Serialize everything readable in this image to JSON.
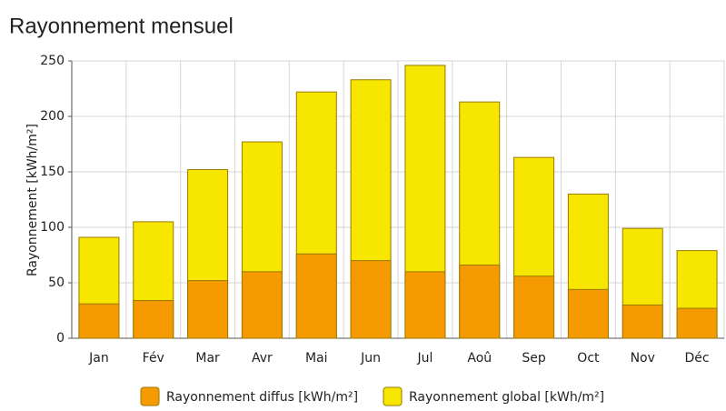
{
  "chart_data": {
    "type": "bar",
    "title": "Rayonnement mensuel",
    "y_label": "Rayonnement [kWh/m²]",
    "categories": [
      "Jan",
      "Fév",
      "Mar",
      "Avr",
      "Mai",
      "Jun",
      "Jul",
      "Aoû",
      "Sep",
      "Oct",
      "Nov",
      "Déc"
    ],
    "series": [
      {
        "name": "Rayonnement global  [kWh/m²]",
        "color": "#f7e600",
        "values": [
          91,
          105,
          152,
          177,
          222,
          233,
          246,
          213,
          163,
          130,
          99,
          79
        ]
      },
      {
        "name": "Rayonnement diffus [kWh/m²]",
        "color": "#f59a00",
        "values": [
          31,
          34,
          52,
          60,
          76,
          70,
          60,
          66,
          56,
          44,
          30,
          27
        ]
      }
    ],
    "ylim": [
      0,
      250
    ],
    "yticks": [
      0,
      50,
      100,
      150,
      200,
      250
    ],
    "grid": true
  }
}
